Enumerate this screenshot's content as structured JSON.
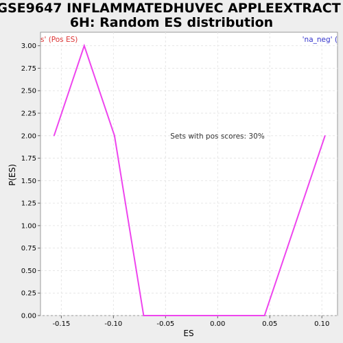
{
  "chart_data": {
    "type": "line",
    "title_lines": [
      "GSE9647 INFLAMMATEDHUVEC APPLEEXTRACT",
      "6H: Random ES distribution"
    ],
    "xlabel": "ES",
    "ylabel": "P(ES)",
    "xlim": [
      -0.17,
      0.115
    ],
    "ylim": [
      0.0,
      3.15
    ],
    "xticks": [
      -0.15,
      -0.1,
      -0.05,
      0.0,
      0.05,
      0.1
    ],
    "xtick_labels": [
      "-0.15",
      "-0.10",
      "-0.05",
      "0.00",
      "0.05",
      "0.10"
    ],
    "yticks": [
      0.0,
      0.25,
      0.5,
      0.75,
      1.0,
      1.25,
      1.5,
      1.75,
      2.0,
      2.25,
      2.5,
      2.75,
      3.0
    ],
    "ytick_labels": [
      "0.00",
      "0.25",
      "0.50",
      "0.75",
      "1.00",
      "1.25",
      "1.50",
      "1.75",
      "2.00",
      "2.25",
      "2.50",
      "2.75",
      "3.00"
    ],
    "grid": true,
    "series": [
      {
        "color": "#ee44ee",
        "x": [
          -0.157,
          -0.128,
          -0.099,
          -0.071,
          -0.042,
          -0.013,
          0.016,
          0.045,
          0.074,
          0.103
        ],
        "y": [
          2.0,
          3.0,
          2.0,
          0.0,
          0.0,
          0.0,
          0.0,
          0.0,
          1.0,
          2.0
        ]
      }
    ],
    "annotation": "Sets with pos scores: 30%",
    "corner_left_text": "s' (Pos ES)",
    "corner_left_color": "#dd3333",
    "corner_right_text": "'na_neg' (",
    "corner_right_color": "#3333cc"
  }
}
